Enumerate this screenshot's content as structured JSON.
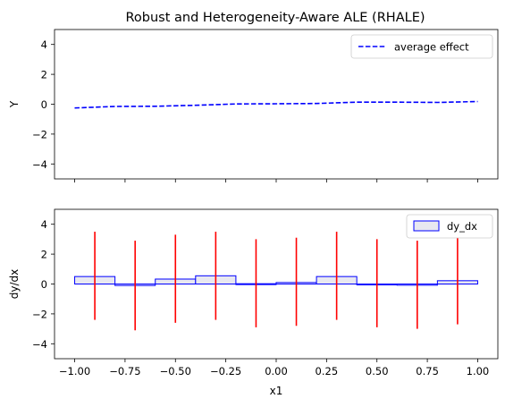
{
  "chart_data": [
    {
      "type": "line",
      "title": "Robust and Heterogeneity-Aware ALE (RHALE)",
      "xlabel": "",
      "ylabel": "Y",
      "xlim": [
        -1.1,
        1.1
      ],
      "ylim": [
        -5,
        5
      ],
      "xticks": [
        -1.0,
        -0.75,
        -0.5,
        -0.25,
        0.0,
        0.25,
        0.5,
        0.75,
        1.0
      ],
      "xtick_labels_visible": false,
      "yticks": [
        -4,
        -2,
        0,
        2,
        4
      ],
      "ytick_labels": [
        "−4",
        "−2",
        "0",
        "2",
        "4"
      ],
      "grid": false,
      "legend": {
        "position": "upper right",
        "entries": [
          "average effect"
        ]
      },
      "series": [
        {
          "name": "average effect",
          "style": "dashed",
          "color": "#0000ff",
          "x": [
            -1.0,
            -0.8,
            -0.6,
            -0.4,
            -0.2,
            0.0,
            0.2,
            0.4,
            0.6,
            0.8,
            1.0
          ],
          "y": [
            -0.25,
            -0.15,
            -0.14,
            -0.07,
            0.02,
            0.03,
            0.05,
            0.14,
            0.14,
            0.12,
            0.18
          ]
        }
      ]
    },
    {
      "type": "bar",
      "title": "",
      "xlabel": "x1",
      "ylabel": "dy/dx",
      "xlim": [
        -1.1,
        1.1
      ],
      "ylim": [
        -5,
        5
      ],
      "xticks": [
        -1.0,
        -0.75,
        -0.5,
        -0.25,
        0.0,
        0.25,
        0.5,
        0.75,
        1.0
      ],
      "xtick_labels": [
        "−1.00",
        "−0.75",
        "−0.50",
        "−0.25",
        "0.00",
        "0.25",
        "0.50",
        "0.75",
        "1.00"
      ],
      "yticks": [
        -4,
        -2,
        0,
        2,
        4
      ],
      "ytick_labels": [
        "−4",
        "−2",
        "0",
        "2",
        "4"
      ],
      "grid": false,
      "legend": {
        "position": "upper right",
        "entries": [
          "dy_dx"
        ]
      },
      "bar_color_fill": "#e8e8f0",
      "bar_color_edge": "#0000ff",
      "errorbar_color": "#ff0000",
      "bins": [
        {
          "start": -1.0,
          "end": -0.8,
          "value": 0.5,
          "center": -0.9,
          "err_low": -2.4,
          "err_high": 3.5
        },
        {
          "start": -0.8,
          "end": -0.6,
          "value": -0.1,
          "center": -0.7,
          "err_low": -3.1,
          "err_high": 2.9
        },
        {
          "start": -0.6,
          "end": -0.4,
          "value": 0.33,
          "center": -0.5,
          "err_low": -2.6,
          "err_high": 3.3
        },
        {
          "start": -0.4,
          "end": -0.2,
          "value": 0.55,
          "center": -0.3,
          "err_low": -2.4,
          "err_high": 3.5
        },
        {
          "start": -0.2,
          "end": 0.0,
          "value": 0.02,
          "center": -0.1,
          "err_low": -2.9,
          "err_high": 3.0
        },
        {
          "start": 0.0,
          "end": 0.2,
          "value": 0.1,
          "center": 0.1,
          "err_low": -2.8,
          "err_high": 3.1
        },
        {
          "start": 0.2,
          "end": 0.4,
          "value": 0.5,
          "center": 0.3,
          "err_low": -2.4,
          "err_high": 3.5
        },
        {
          "start": 0.4,
          "end": 0.6,
          "value": 0.0,
          "center": 0.5,
          "err_low": -2.9,
          "err_high": 3.0
        },
        {
          "start": 0.6,
          "end": 0.8,
          "value": -0.08,
          "center": 0.7,
          "err_low": -3.0,
          "err_high": 2.9
        },
        {
          "start": 0.8,
          "end": 1.0,
          "value": 0.22,
          "center": 0.9,
          "err_low": -2.7,
          "err_high": 3.1
        }
      ]
    }
  ]
}
